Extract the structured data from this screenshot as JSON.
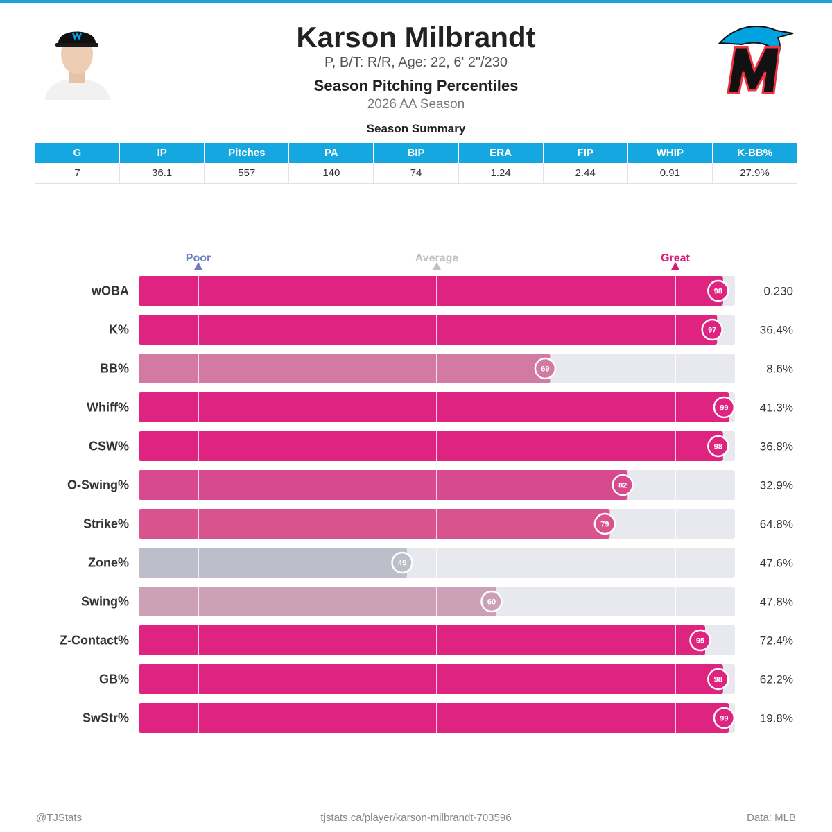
{
  "header": {
    "player_name": "Karson Milbrandt",
    "bio": "P, B/T: R/R, Age: 22, 6' 2\"/230",
    "section_title": "Season Pitching Percentiles",
    "season": "2026 AA Season",
    "logo_icon": "marlins-logo-icon",
    "headshot_icon": "player-headshot-icon"
  },
  "summary": {
    "caption": "Season Summary",
    "columns": [
      "G",
      "IP",
      "Pitches",
      "PA",
      "BIP",
      "ERA",
      "FIP",
      "WHIP",
      "K-BB%"
    ],
    "values": [
      "7",
      "36.1",
      "557",
      "140",
      "74",
      "1.24",
      "2.44",
      "0.91",
      "27.9%"
    ],
    "header_color": "#14a7e0"
  },
  "chart_data": {
    "type": "bar",
    "orientation": "horizontal",
    "xlim": [
      0,
      100
    ],
    "scale_labels": [
      {
        "label": "Poor",
        "value": 10,
        "color": "#6b7fc4"
      },
      {
        "label": "Average",
        "value": 50,
        "color": "#c0c0c0"
      },
      {
        "label": "Great",
        "value": 90,
        "color": "#d81b78"
      }
    ],
    "categories": [
      "wOBA",
      "K%",
      "BB%",
      "Whiff%",
      "CSW%",
      "O-Swing%",
      "Strike%",
      "Zone%",
      "Swing%",
      "Z-Contact%",
      "GB%",
      "SwStr%"
    ],
    "percentiles": [
      98,
      97,
      69,
      99,
      98,
      82,
      79,
      45,
      60,
      95,
      98,
      99
    ],
    "stat_values": [
      "0.230",
      "36.4%",
      "8.6%",
      "41.3%",
      "36.8%",
      "32.9%",
      "64.8%",
      "47.6%",
      "47.8%",
      "72.4%",
      "62.2%",
      "19.8%"
    ],
    "bar_colors": [
      "#de2480",
      "#de2480",
      "#d279a4",
      "#de2480",
      "#de2480",
      "#d84a90",
      "#d9538f",
      "#bcbfc9",
      "#cca0b6",
      "#de2480",
      "#de2480",
      "#de2480"
    ],
    "track_color": "#e8e9ef"
  },
  "footer": {
    "left": "@TJStats",
    "center": "tjstats.ca/player/karson-milbrandt-703596",
    "right": "Data: MLB"
  }
}
